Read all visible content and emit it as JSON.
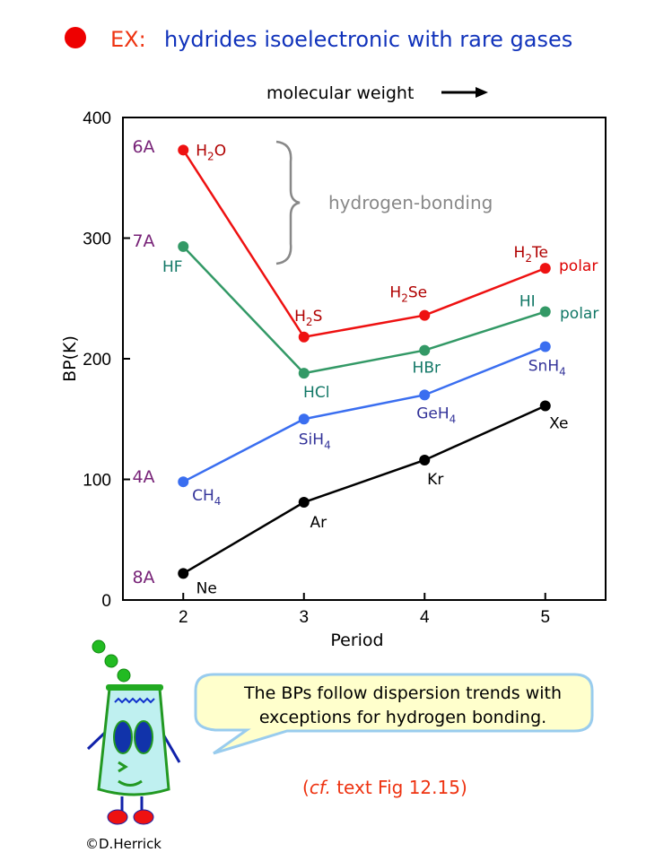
{
  "header": {
    "ex": "EX:",
    "title": "hydrides isoelectronic with rare gases",
    "mw": "molecular weight"
  },
  "chart_data": {
    "type": "line",
    "xlabel": "Period",
    "ylabel": "BP(K)",
    "xlim": [
      1.5,
      5.5
    ],
    "ylim": [
      0,
      400
    ],
    "xticks": [
      "2",
      "3",
      "4",
      "5"
    ],
    "yticks": [
      "0",
      "100",
      "200",
      "300",
      "400"
    ],
    "x": [
      2,
      3,
      4,
      5
    ],
    "series": [
      {
        "name": "6A",
        "color": "#ee1111",
        "label_color": "#b00000",
        "values": [
          373,
          218,
          236,
          275
        ],
        "labels": [
          {
            "b": "H",
            "s": "2",
            "a": "O"
          },
          {
            "b": "H",
            "s": "2",
            "a": "S"
          },
          {
            "b": "H",
            "s": "2",
            "a": "Se"
          },
          {
            "b": "H",
            "s": "2",
            "a": "Te"
          }
        ]
      },
      {
        "name": "7A",
        "color": "#339966",
        "label_color": "#117766",
        "values": [
          293,
          188,
          207,
          239
        ],
        "labels": [
          {
            "b": "HF",
            "s": "",
            "a": ""
          },
          {
            "b": "HCl",
            "s": "",
            "a": ""
          },
          {
            "b": "HBr",
            "s": "",
            "a": ""
          },
          {
            "b": "HI",
            "s": "",
            "a": ""
          }
        ]
      },
      {
        "name": "4A",
        "color": "#3a6ef0",
        "label_color": "#333399",
        "values": [
          98,
          150,
          170,
          210
        ],
        "labels": [
          {
            "b": "CH",
            "s": "4",
            "a": ""
          },
          {
            "b": "SiH",
            "s": "4",
            "a": ""
          },
          {
            "b": "GeH",
            "s": "4",
            "a": ""
          },
          {
            "b": "SnH",
            "s": "4",
            "a": ""
          }
        ]
      },
      {
        "name": "8A",
        "color": "#000000",
        "label_color": "#000000",
        "values": [
          22,
          81,
          116,
          161
        ],
        "labels": [
          {
            "b": "Ne",
            "s": "",
            "a": ""
          },
          {
            "b": "Ar",
            "s": "",
            "a": ""
          },
          {
            "b": "Kr",
            "s": "",
            "a": ""
          },
          {
            "b": "Xe",
            "s": "",
            "a": ""
          }
        ]
      }
    ],
    "annotations": {
      "hbond": "hydrogen-bonding",
      "polar1": "polar",
      "polar2": "polar"
    }
  },
  "bubble": {
    "line1": "The BPs follow dispersion trends with",
    "line2": "exceptions for hydrogen bonding."
  },
  "ref": {
    "open": "(",
    "cf": "cf.",
    "rest": " text Fig 12.15)"
  },
  "credit": "©D.Herrick",
  "colors": {
    "ex": "#ee3311",
    "title": "#1133bb",
    "group": "#772277",
    "hbond": "#888888"
  }
}
